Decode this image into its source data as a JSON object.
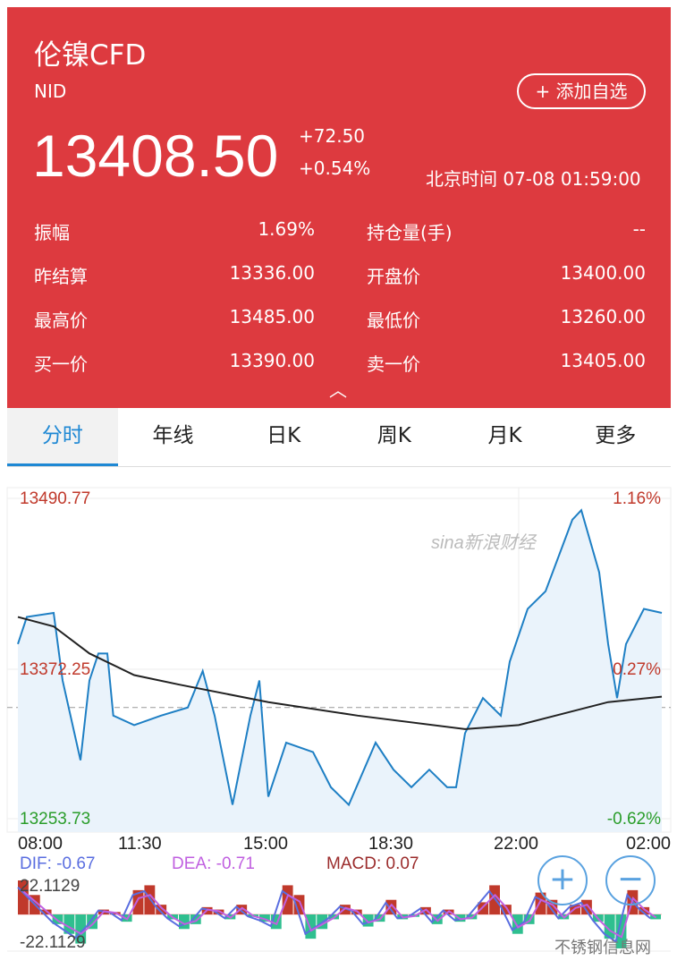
{
  "header": {
    "title": "伦镍CFD",
    "code": "NID",
    "add_watchlist": "+ 添加自选",
    "price": "13408.50",
    "change": "+72.50",
    "change_pct": "+0.54%",
    "time": "北京时间 07-08 01:59:00",
    "expand_icon": "chevron-up"
  },
  "stats": [
    {
      "l1": "振幅",
      "v1": "1.69%",
      "l2": "持仓量(手)",
      "v2": "--"
    },
    {
      "l1": "昨结算",
      "v1": "13336.00",
      "l2": "开盘价",
      "v2": "13400.00"
    },
    {
      "l1": "最高价",
      "v1": "13485.00",
      "l2": "最低价",
      "v2": "13260.00"
    },
    {
      "l1": "买一价",
      "v1": "13390.00",
      "l2": "卖一价",
      "v2": "13405.00"
    }
  ],
  "tabs": [
    "分时",
    "年线",
    "日K",
    "周K",
    "月K",
    "更多"
  ],
  "colors": {
    "header": "#dd3a3f",
    "accent": "#1e88d4",
    "up": "#c0392b",
    "down": "#2fbf8f",
    "dif": "#5a6ee0",
    "dea": "#c060e0",
    "macd": "#9b2c2c"
  },
  "watermark": "sina新浪财经",
  "footer_watermark": "不锈钢信息网",
  "zoom": {
    "in": "+",
    "out": "−"
  },
  "chart_data": [
    {
      "type": "line",
      "ylim": [
        13253.73,
        13490.77
      ],
      "reference": 13336.0,
      "y_labels": {
        "top": "13490.77",
        "mid": "13372.25",
        "bottom": "13253.73"
      },
      "pct_labels": {
        "top": "1.16%",
        "mid": "0.27%",
        "bottom": "-0.62%"
      },
      "x_ticks": [
        "08:00",
        "11:30",
        "15:00",
        "18:30",
        "22:00",
        "02:00"
      ],
      "series": [
        {
          "points": [
            [
              "08:00",
              13383
            ],
            [
              "08:15",
              13403
            ],
            [
              "09:00",
              13406
            ],
            [
              "09:15",
              13356
            ],
            [
              "09:45",
              13297
            ],
            [
              "10:00",
              13356
            ],
            [
              "10:15",
              13376
            ],
            [
              "10:30",
              13376
            ],
            [
              "10:40",
              13330
            ],
            [
              "11:15",
              13323
            ],
            [
              "12:00",
              13330
            ],
            [
              "12:45",
              13336
            ],
            [
              "13:10",
              13363
            ],
            [
              "13:30",
              13330
            ],
            [
              "14:00",
              13264
            ],
            [
              "14:30",
              13330
            ],
            [
              "14:45",
              13356
            ],
            [
              "15:00",
              13270
            ],
            [
              "15:30",
              13310
            ],
            [
              "16:15",
              13303
            ],
            [
              "16:45",
              13277
            ],
            [
              "17:15",
              13264
            ],
            [
              "18:00",
              13310
            ],
            [
              "18:30",
              13290
            ],
            [
              "19:00",
              13277
            ],
            [
              "19:30",
              13290
            ],
            [
              "20:00",
              13277
            ],
            [
              "20:15",
              13277
            ],
            [
              "20:30",
              13317
            ],
            [
              "21:00",
              13343
            ],
            [
              "21:30",
              13330
            ],
            [
              "21:45",
              13370
            ],
            [
              "22:15",
              13409
            ],
            [
              "22:45",
              13422
            ],
            [
              "23:30",
              13475
            ],
            [
              "23:45",
              13482
            ],
            [
              "00:15",
              13436
            ],
            [
              "00:30",
              13383
            ],
            [
              "00:45",
              13343
            ],
            [
              "01:00",
              13383
            ],
            [
              "01:30",
              13409
            ],
            [
              "02:00",
              13406
            ]
          ]
        },
        {
          "points": [
            [
              "08:00",
              13403
            ],
            [
              "09:00",
              13396
            ],
            [
              "10:00",
              13376
            ],
            [
              "11:15",
              13360
            ],
            [
              "12:30",
              13353
            ],
            [
              "15:00",
              13340
            ],
            [
              "17:30",
              13330
            ],
            [
              "20:30",
              13320
            ],
            [
              "22:00",
              13323
            ],
            [
              "00:30",
              13340
            ],
            [
              "02:00",
              13344
            ]
          ]
        }
      ]
    },
    {
      "type": "bar",
      "ylim": [
        -22.1129,
        22.1129
      ],
      "y_labels": {
        "top": "22.1129",
        "bottom": "-22.1129"
      },
      "legend": {
        "dif": "DIF: -0.67",
        "dea": "DEA: -0.71",
        "macd": "MACD: 0.07"
      },
      "macd": [
        14,
        8,
        2,
        -4,
        -8,
        -12,
        -6,
        2,
        1,
        -3,
        10,
        12,
        4,
        -2,
        -6,
        -4,
        3,
        2,
        -2,
        4,
        -1,
        -3,
        -6,
        12,
        8,
        -10,
        -6,
        -2,
        4,
        2,
        -5,
        -3,
        6,
        -2,
        -1,
        3,
        -4,
        2,
        -3,
        -2,
        5,
        12,
        4,
        -8,
        -4,
        9,
        6,
        -2,
        4,
        6,
        -3,
        -10,
        -14,
        10,
        3,
        -2
      ]
    }
  ]
}
